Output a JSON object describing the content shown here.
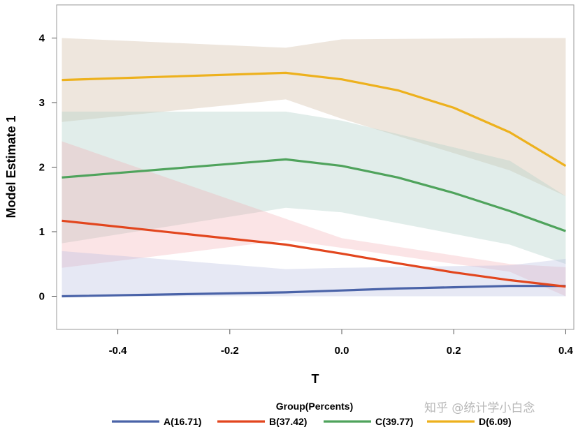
{
  "watermark": "知乎 @统计学小白念",
  "colors": {
    "A": "#4A63A8",
    "B": "#E2461E",
    "C": "#4FA35C",
    "D": "#EDB11D"
  },
  "chart_data": {
    "type": "line",
    "title": "",
    "xlabel": "T",
    "ylabel": "Model Estimate 1",
    "xlim": [
      -0.5,
      0.4
    ],
    "ylim": [
      -0.5,
      4.5
    ],
    "xticks": [
      -0.4,
      -0.2,
      0.0,
      0.2,
      0.4
    ],
    "xtick_labels": [
      "-0.4",
      "-0.2",
      "0.0",
      "0.2",
      "0.4"
    ],
    "yticks": [
      0,
      1,
      2,
      3,
      4
    ],
    "ytick_labels": [
      "0",
      "1",
      "2",
      "3",
      "4"
    ],
    "grid": false,
    "legend_title": "Group(Percents)",
    "legend_position": "bottom",
    "x": [
      -0.5,
      -0.1,
      0.0,
      0.1,
      0.2,
      0.3,
      0.4
    ],
    "series": [
      {
        "name": "A(16.71)",
        "key": "A",
        "values": [
          0.0,
          0.06,
          0.09,
          0.12,
          0.14,
          0.16,
          0.16
        ]
      },
      {
        "name": "B(37.42)",
        "key": "B",
        "values": [
          1.17,
          0.8,
          0.66,
          0.51,
          0.37,
          0.25,
          0.15
        ]
      },
      {
        "name": "C(39.77)",
        "key": "C",
        "values": [
          1.84,
          2.12,
          2.02,
          1.84,
          1.6,
          1.32,
          1.01
        ]
      },
      {
        "name": "D(6.09)",
        "key": "D",
        "values": [
          3.35,
          3.46,
          3.36,
          3.19,
          2.92,
          2.54,
          2.02
        ]
      }
    ]
  }
}
